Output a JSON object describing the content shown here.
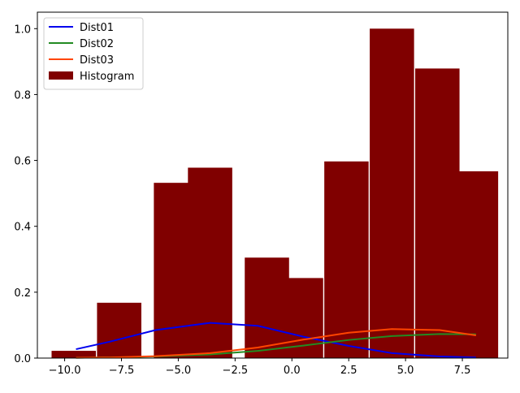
{
  "chart_data": {
    "type": "bar",
    "x_ticks": [
      "−10.0",
      "−7.5",
      "−5.0",
      "−2.5",
      "0.0",
      "2.5",
      "5.0",
      "7.5"
    ],
    "x_tick_values": [
      -10,
      -7.5,
      -5,
      -2.5,
      0,
      2.5,
      5,
      7.5
    ],
    "y_ticks": [
      "0.0",
      "0.2",
      "0.4",
      "0.6",
      "0.8",
      "1.0"
    ],
    "y_tick_values": [
      0,
      0.2,
      0.4,
      0.6,
      0.8,
      1.0
    ],
    "xlim": [
      -11.2,
      9.5
    ],
    "ylim": [
      0,
      1.05
    ],
    "grid": false,
    "legend_position": "top-left",
    "histogram": {
      "name": "Histogram",
      "color": "#800000",
      "bar_width": 1.95,
      "centers": [
        -9.6,
        -7.6,
        -5.1,
        -3.6,
        -1.1,
        0.4,
        2.4,
        4.4,
        6.4,
        8.1
      ],
      "values": [
        0.022,
        0.168,
        0.532,
        0.578,
        0.305,
        0.243,
        0.597,
        1.0,
        0.879,
        0.567
      ]
    },
    "series": [
      {
        "name": "Dist01",
        "color": "#0000ee",
        "x": [
          -9.5,
          -8.0,
          -6.0,
          -3.6,
          -1.5,
          0.5,
          2.5,
          4.4,
          6.5,
          8.1
        ],
        "y": [
          0.027,
          0.05,
          0.085,
          0.107,
          0.098,
          0.065,
          0.037,
          0.015,
          0.005,
          0.002
        ]
      },
      {
        "name": "Dist02",
        "color": "#228b22",
        "x": [
          -9.5,
          -8.0,
          -6.0,
          -3.6,
          -1.5,
          0.5,
          2.5,
          4.4,
          6.5,
          8.1
        ],
        "y": [
          0.001,
          0.002,
          0.005,
          0.011,
          0.022,
          0.038,
          0.055,
          0.067,
          0.073,
          0.072
        ]
      },
      {
        "name": "Dist03",
        "color": "#ff4500",
        "x": [
          -9.5,
          -8.0,
          -6.0,
          -3.6,
          -1.5,
          0.5,
          2.5,
          4.4,
          6.5,
          8.1
        ],
        "y": [
          0.001,
          0.002,
          0.006,
          0.015,
          0.032,
          0.056,
          0.077,
          0.088,
          0.085,
          0.069
        ]
      }
    ]
  }
}
